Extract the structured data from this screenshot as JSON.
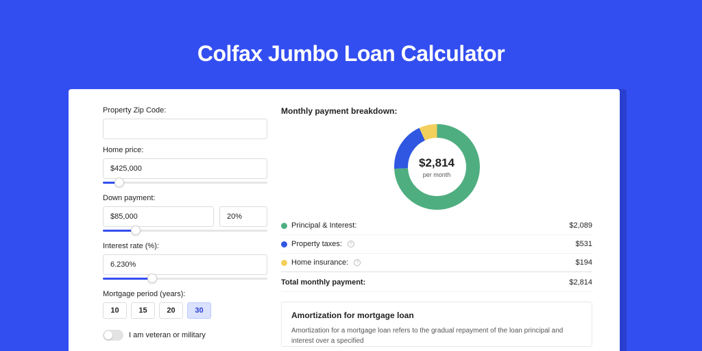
{
  "page": {
    "title": "Colfax Jumbo Loan Calculator"
  },
  "colors": {
    "bg": "#334ef0",
    "principal": "#4fae80",
    "taxes": "#3057e1",
    "insurance": "#f3cf5b"
  },
  "form": {
    "zip_label": "Property Zip Code:",
    "home_price_label": "Home price:",
    "home_price_value": "$425,000",
    "home_price_slider_pct": 10,
    "down_payment_label": "Down payment:",
    "down_payment_value": "$85,000",
    "down_payment_pct_value": "20%",
    "down_payment_slider_pct": 20,
    "interest_label": "Interest rate (%):",
    "interest_value": "6.230%",
    "interest_slider_pct": 30,
    "period_label": "Mortgage period (years):",
    "periods": [
      "10",
      "15",
      "20",
      "30"
    ],
    "period_selected": "30",
    "veteran_label": "I am veteran or military"
  },
  "breakdown": {
    "title": "Monthly payment breakdown:",
    "total_display": "$2,814",
    "total_sub": "per month",
    "donut": {
      "size": 125,
      "stroke": 20,
      "slices": [
        {
          "key": "principal",
          "value": 2089,
          "color": "#4fae80"
        },
        {
          "key": "taxes",
          "value": 531,
          "color": "#3057e1"
        },
        {
          "key": "insurance",
          "value": 194,
          "color": "#f3cf5b"
        }
      ]
    },
    "rows": [
      {
        "label": "Principal & Interest:",
        "value": "$2,089",
        "color": "#4fae80",
        "info": false
      },
      {
        "label": "Property taxes:",
        "value": "$531",
        "color": "#3057e1",
        "info": true
      },
      {
        "label": "Home insurance:",
        "value": "$194",
        "color": "#f3cf5b",
        "info": true
      }
    ],
    "total_label": "Total monthly payment:",
    "total_value": "$2,814"
  },
  "amort": {
    "title": "Amortization for mortgage loan",
    "text": "Amortization for a mortgage loan refers to the gradual repayment of the loan principal and interest over a specified"
  }
}
